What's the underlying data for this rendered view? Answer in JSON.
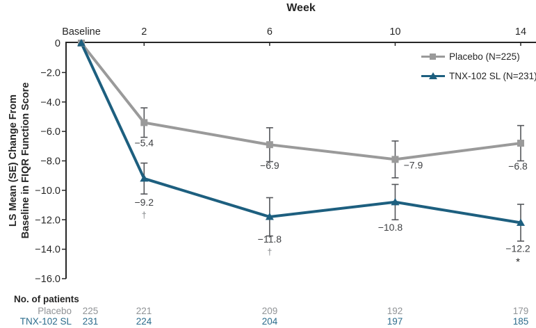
{
  "title": "Week",
  "chart_data": {
    "type": "line",
    "title": "Week",
    "ylabel_lines": [
      "LS Mean (SE) Change From",
      "Baseline in FIQR Function Score"
    ],
    "x_values": [
      0,
      2,
      6,
      10,
      14
    ],
    "x_tick_labels": [
      "Baseline",
      "2",
      "6",
      "10",
      "14"
    ],
    "y_ticks": [
      0,
      -2,
      -4,
      -6,
      -8,
      -10,
      -12,
      -14,
      -16
    ],
    "y_tick_labels": [
      "0",
      "−2.0",
      "−4.0",
      "−6.0",
      "−8.0",
      "−10.0",
      "−12.0",
      "−14.0",
      "−16.0"
    ],
    "ylim": [
      -16,
      0
    ],
    "grid": false,
    "legend_position": "top-right",
    "error_bar_color": "#54565a",
    "axis_color": "#262626",
    "series": [
      {
        "name": "Placebo",
        "legend_label": "Placebo (N=225)",
        "color": "#9a9a9a",
        "marker": "square",
        "values": [
          0,
          -5.4,
          -6.9,
          -7.9,
          -6.8
        ],
        "se": [
          null,
          1.0,
          1.15,
          1.25,
          1.2
        ],
        "point_labels": [
          null,
          "−5.4",
          "−6.9",
          "−7.9",
          "−6.8"
        ],
        "sig_marks": [
          null,
          null,
          null,
          null,
          null
        ]
      },
      {
        "name": "TNX-102 SL",
        "legend_label": "TNX-102 SL (N=231)",
        "color": "#1d5f7f",
        "marker": "triangle",
        "values": [
          0,
          -9.2,
          -11.8,
          -10.8,
          -12.2
        ],
        "se": [
          null,
          1.05,
          1.3,
          1.2,
          1.25
        ],
        "point_labels": [
          null,
          "−9.2",
          "−11.8",
          "−10.8",
          "−12.2"
        ],
        "sig_marks": [
          null,
          "†",
          "†",
          null,
          "*"
        ]
      }
    ]
  },
  "patients_table": {
    "heading": "No. of patients",
    "rows": [
      {
        "label": "Placebo",
        "color": "#909396",
        "counts": [
          "225",
          "221",
          "209",
          "192",
          "179"
        ]
      },
      {
        "label": "TNX-102 SL",
        "color": "#2b6c8c",
        "counts": [
          "231",
          "224",
          "204",
          "197",
          "185"
        ]
      }
    ]
  }
}
